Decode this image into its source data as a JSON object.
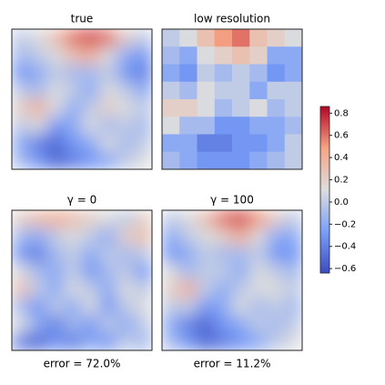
{
  "chart_data": [
    {
      "type": "heatmap",
      "title": "true",
      "interpolation": "smooth",
      "values": [
        [
          0.0,
          0.1,
          0.3,
          0.6,
          0.7,
          0.6,
          0.2,
          0.0
        ],
        [
          -0.1,
          0.0,
          0.1,
          0.3,
          0.4,
          0.1,
          -0.2,
          -0.3
        ],
        [
          -0.3,
          -0.2,
          0.0,
          -0.1,
          -0.1,
          0.0,
          -0.3,
          -0.4
        ],
        [
          0.0,
          -0.1,
          0.1,
          0.0,
          -0.2,
          0.1,
          0.0,
          -0.2
        ],
        [
          0.2,
          0.4,
          0.1,
          -0.2,
          0.0,
          0.2,
          0.1,
          0.0
        ],
        [
          0.0,
          0.1,
          -0.3,
          -0.2,
          0.1,
          -0.1,
          0.0,
          -0.1
        ],
        [
          -0.2,
          -0.4,
          -0.5,
          -0.3,
          -0.2,
          0.1,
          -0.1,
          0.0
        ],
        [
          -0.1,
          -0.3,
          -0.5,
          -0.4,
          -0.3,
          -0.2,
          0.0,
          0.1
        ]
      ]
    },
    {
      "type": "heatmap",
      "title": "low resolution",
      "interpolation": "nearest",
      "values": [
        [
          0.0,
          0.1,
          0.3,
          0.5,
          0.6,
          0.3,
          0.2,
          0.1
        ],
        [
          -0.1,
          -0.2,
          0.1,
          0.2,
          0.3,
          0.2,
          -0.2,
          -0.2
        ],
        [
          -0.2,
          -0.3,
          0.0,
          -0.1,
          0.0,
          -0.1,
          -0.3,
          -0.2
        ],
        [
          0.0,
          -0.1,
          0.1,
          0.0,
          0.0,
          -0.2,
          0.0,
          0.0
        ],
        [
          0.2,
          0.2,
          0.1,
          -0.1,
          0.0,
          0.1,
          -0.1,
          0.0
        ],
        [
          0.1,
          -0.1,
          -0.1,
          -0.3,
          -0.3,
          -0.2,
          -0.2,
          -0.1
        ],
        [
          -0.2,
          -0.2,
          -0.4,
          -0.4,
          -0.3,
          -0.3,
          -0.2,
          0.0
        ],
        [
          -0.1,
          -0.2,
          -0.3,
          -0.3,
          -0.3,
          -0.2,
          -0.1,
          0.0
        ]
      ]
    },
    {
      "type": "heatmap",
      "title": "γ = 0",
      "xlabel": "error = 72.0%",
      "interpolation": "smooth",
      "values": [
        [
          0.2,
          0.3,
          0.4,
          0.3,
          0.2,
          0.1,
          0.0,
          0.2
        ],
        [
          -0.1,
          -0.2,
          0.0,
          0.1,
          0.0,
          -0.2,
          0.2,
          0.3
        ],
        [
          -0.3,
          -0.4,
          -0.1,
          0.0,
          -0.2,
          0.0,
          -0.1,
          0.0
        ],
        [
          0.1,
          -0.1,
          -0.2,
          0.0,
          -0.3,
          -0.1,
          0.0,
          -0.3
        ],
        [
          0.3,
          0.0,
          -0.2,
          0.1,
          0.0,
          -0.2,
          0.1,
          0.0
        ],
        [
          -0.1,
          -0.3,
          0.0,
          -0.2,
          0.1,
          -0.3,
          0.0,
          0.1
        ],
        [
          0.1,
          -0.2,
          -0.4,
          -0.1,
          -0.3,
          0.0,
          -0.2,
          0.0
        ],
        [
          -0.4,
          -0.5,
          -0.3,
          -0.4,
          -0.2,
          -0.3,
          0.0,
          -0.1
        ]
      ]
    },
    {
      "type": "heatmap",
      "title": "γ = 100",
      "xlabel": "error = 11.2%",
      "interpolation": "smooth",
      "values": [
        [
          0.0,
          0.1,
          0.3,
          0.6,
          0.7,
          0.5,
          0.2,
          0.0
        ],
        [
          -0.2,
          0.0,
          0.1,
          0.2,
          0.4,
          0.1,
          -0.2,
          -0.2
        ],
        [
          -0.3,
          -0.2,
          0.0,
          -0.1,
          -0.1,
          0.0,
          -0.3,
          -0.3
        ],
        [
          0.1,
          -0.1,
          0.0,
          0.0,
          -0.2,
          0.1,
          0.0,
          -0.1
        ],
        [
          0.2,
          0.4,
          0.0,
          -0.2,
          0.0,
          0.1,
          0.1,
          0.0
        ],
        [
          0.0,
          0.0,
          -0.3,
          -0.2,
          0.1,
          -0.1,
          0.0,
          -0.1
        ],
        [
          -0.2,
          -0.4,
          -0.5,
          -0.3,
          -0.2,
          0.0,
          -0.1,
          0.0
        ],
        [
          -0.1,
          -0.3,
          -0.5,
          -0.4,
          -0.3,
          -0.2,
          0.0,
          0.1
        ]
      ]
    }
  ],
  "colorbar": {
    "colormap": "coolwarm",
    "clim": [
      -0.64,
      0.86
    ],
    "ticks": [
      {
        "value": -0.6,
        "label": "−0.6"
      },
      {
        "value": -0.4,
        "label": "−0.4"
      },
      {
        "value": -0.2,
        "label": "−0.2"
      },
      {
        "value": 0,
        "label": "0.0"
      },
      0.2,
      0.4,
      0.6,
      0.8
    ]
  }
}
